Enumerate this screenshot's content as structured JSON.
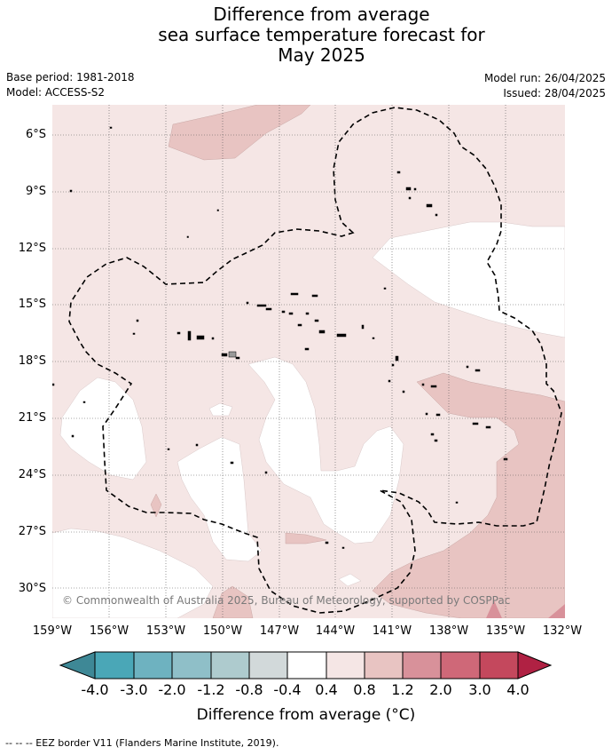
{
  "title_lines": [
    "Difference from average",
    "sea surface temperature forecast for",
    "May 2025"
  ],
  "meta": {
    "base_period": "Base period: 1981-2018",
    "model": "Model: ACCESS-S2",
    "model_run": "Model run: 26/04/2025",
    "issued": "Issued: 28/04/2025"
  },
  "map": {
    "lat_labels": [
      "6°S",
      "9°S",
      "12°S",
      "15°S",
      "18°S",
      "21°S",
      "24°S",
      "27°S",
      "30°S"
    ],
    "lon_labels": [
      "159°W",
      "156°W",
      "153°W",
      "150°W",
      "147°W",
      "144°W",
      "141°W",
      "138°W",
      "135°W",
      "132°W"
    ],
    "copyright": "© Commonwealth of Australia 2025, Bureau of Meteorology, supported by COSPPac"
  },
  "colorbar": {
    "ticks": [
      "-4.0",
      "-3.0",
      "-2.0",
      "-1.2",
      "-0.8",
      "-0.4",
      "0.4",
      "0.8",
      "1.2",
      "2.0",
      "3.0",
      "4.0"
    ],
    "colors": [
      "#3e8896",
      "#4aa7b7",
      "#6eb2c0",
      "#8fbfc8",
      "#aecbce",
      "#d2d9da",
      "#ffffff",
      "#f5e6e5",
      "#e8c4c2",
      "#d8919a",
      "#cf6878",
      "#c4485d",
      "#b02143"
    ],
    "label": "Difference from average (°C)"
  },
  "footer": "-- -- -- EEZ border V11 (Flanders Marine Institute, 2019)."
}
